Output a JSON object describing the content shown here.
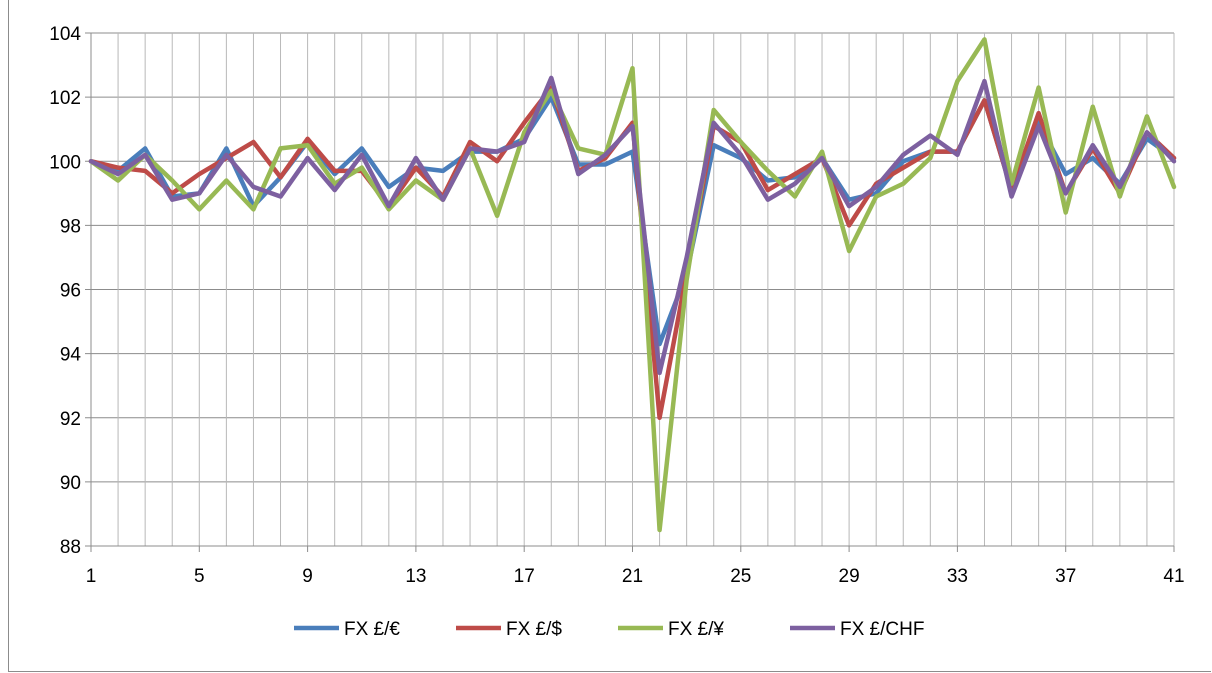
{
  "chart_data": {
    "type": "line",
    "title": "",
    "xlabel": "",
    "ylabel": "",
    "x": [
      1,
      2,
      3,
      4,
      5,
      6,
      7,
      8,
      9,
      10,
      11,
      12,
      13,
      14,
      15,
      16,
      17,
      18,
      19,
      20,
      21,
      22,
      23,
      24,
      25,
      26,
      27,
      28,
      29,
      30,
      31,
      32,
      33,
      34,
      35,
      36,
      37,
      38,
      39,
      40,
      41
    ],
    "x_ticks": [
      1,
      5,
      9,
      13,
      17,
      21,
      25,
      29,
      33,
      37,
      41
    ],
    "xlim": [
      1,
      41
    ],
    "ylim": [
      88,
      104
    ],
    "y_ticks": [
      88,
      90,
      92,
      94,
      96,
      98,
      100,
      102,
      104
    ],
    "grid": true,
    "legend_position": "bottom",
    "series": [
      {
        "name": "FX £/€",
        "color": "#4a7ebb",
        "values": [
          100.0,
          99.7,
          100.4,
          98.9,
          99.0,
          100.4,
          98.6,
          99.5,
          100.6,
          99.6,
          100.4,
          99.2,
          99.8,
          99.7,
          100.3,
          100.3,
          100.7,
          102.0,
          99.9,
          99.9,
          100.3,
          94.3,
          96.5,
          100.5,
          100.1,
          99.4,
          99.5,
          100.1,
          98.8,
          99.0,
          100.0,
          100.3,
          100.3,
          101.9,
          99.1,
          101.2,
          99.6,
          100.1,
          99.3,
          100.7,
          100.1
        ]
      },
      {
        "name": "FX £/$",
        "color": "#be4b48",
        "values": [
          100.0,
          99.8,
          99.7,
          99.0,
          99.6,
          100.1,
          100.6,
          99.5,
          100.7,
          99.7,
          99.7,
          98.6,
          99.8,
          98.9,
          100.6,
          100.0,
          101.2,
          102.3,
          99.7,
          100.1,
          101.2,
          92.0,
          96.5,
          101.1,
          100.6,
          99.1,
          99.6,
          100.1,
          98.0,
          99.3,
          99.8,
          100.3,
          100.3,
          101.9,
          99.1,
          101.5,
          99.0,
          100.4,
          99.0,
          100.9,
          100.1
        ]
      },
      {
        "name": "FX £/¥",
        "color": "#98b954",
        "values": [
          100.0,
          99.4,
          100.2,
          99.4,
          98.5,
          99.4,
          98.5,
          100.4,
          100.5,
          99.3,
          99.8,
          98.5,
          99.4,
          98.8,
          100.4,
          98.3,
          100.9,
          102.2,
          100.4,
          100.2,
          102.9,
          88.5,
          96.3,
          101.6,
          100.6,
          99.7,
          98.9,
          100.3,
          97.2,
          98.9,
          99.3,
          100.1,
          102.5,
          103.8,
          99.3,
          102.3,
          98.4,
          101.7,
          98.9,
          101.4,
          99.2
        ]
      },
      {
        "name": "FX £/CHF",
        "color": "#7d60a0",
        "values": [
          100.0,
          99.6,
          100.2,
          98.8,
          99.0,
          100.2,
          99.2,
          98.9,
          100.1,
          99.1,
          100.2,
          98.6,
          100.1,
          98.8,
          100.4,
          100.3,
          100.6,
          102.6,
          99.6,
          100.2,
          101.1,
          93.4,
          97.0,
          101.2,
          100.2,
          98.8,
          99.3,
          100.1,
          98.6,
          99.2,
          100.2,
          100.8,
          100.2,
          102.5,
          98.9,
          101.1,
          99.0,
          100.5,
          99.2,
          100.9,
          100.0
        ]
      }
    ]
  }
}
